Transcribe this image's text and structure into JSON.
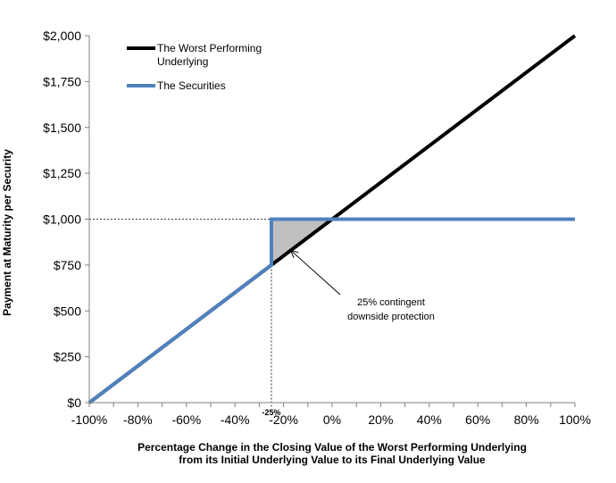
{
  "chart_data": {
    "type": "line",
    "xlabel_lines": [
      "Percentage Change in the Closing Value of the Worst Performing Underlying",
      "from its Initial Underlying Value to its Final Underlying Value"
    ],
    "ylabel": "Payment at Maturity per Security",
    "xlim": [
      -100,
      100
    ],
    "ylim": [
      0,
      2000
    ],
    "x_ticks": [
      -100,
      -80,
      -60,
      -40,
      -20,
      0,
      20,
      40,
      60,
      80,
      100
    ],
    "x_tick_labels": [
      "-100%",
      "-80%",
      "-60%",
      "-40%",
      "-20%",
      "0%",
      "20%",
      "40%",
      "60%",
      "80%",
      "100%"
    ],
    "y_ticks": [
      0,
      250,
      500,
      750,
      1000,
      1250,
      1500,
      1750,
      2000
    ],
    "y_tick_labels": [
      "$0",
      "$250",
      "$500",
      "$750",
      "$1,000",
      "$1,250",
      "$1,500",
      "$1,750",
      "$2,000"
    ],
    "series": [
      {
        "name": "The Worst Performing Underlying",
        "legend_lines": [
          "The Worst Performing",
          "Underlying"
        ],
        "color": "#000000",
        "x": [
          -100,
          100
        ],
        "y": [
          0,
          2000
        ]
      },
      {
        "name": "The Securities",
        "legend_lines": [
          "The Securities"
        ],
        "color": "#4F81BD",
        "x": [
          -100,
          -25,
          -25,
          100
        ],
        "y": [
          0,
          750,
          1000,
          1000
        ]
      }
    ],
    "legend_position": "top-left",
    "shaded_region": {
      "color": "#c0c0c0",
      "points": [
        [
          -25,
          750
        ],
        [
          -25,
          1000
        ],
        [
          0,
          1000
        ]
      ]
    },
    "reference_lines": {
      "vertical_x": -25,
      "horizontal_y": 1000,
      "marker_label": "-25%"
    },
    "annotation": {
      "lines": [
        "25% contingent",
        "downside protection"
      ],
      "arrow_target": [
        -17,
        830
      ]
    },
    "grid": false
  }
}
